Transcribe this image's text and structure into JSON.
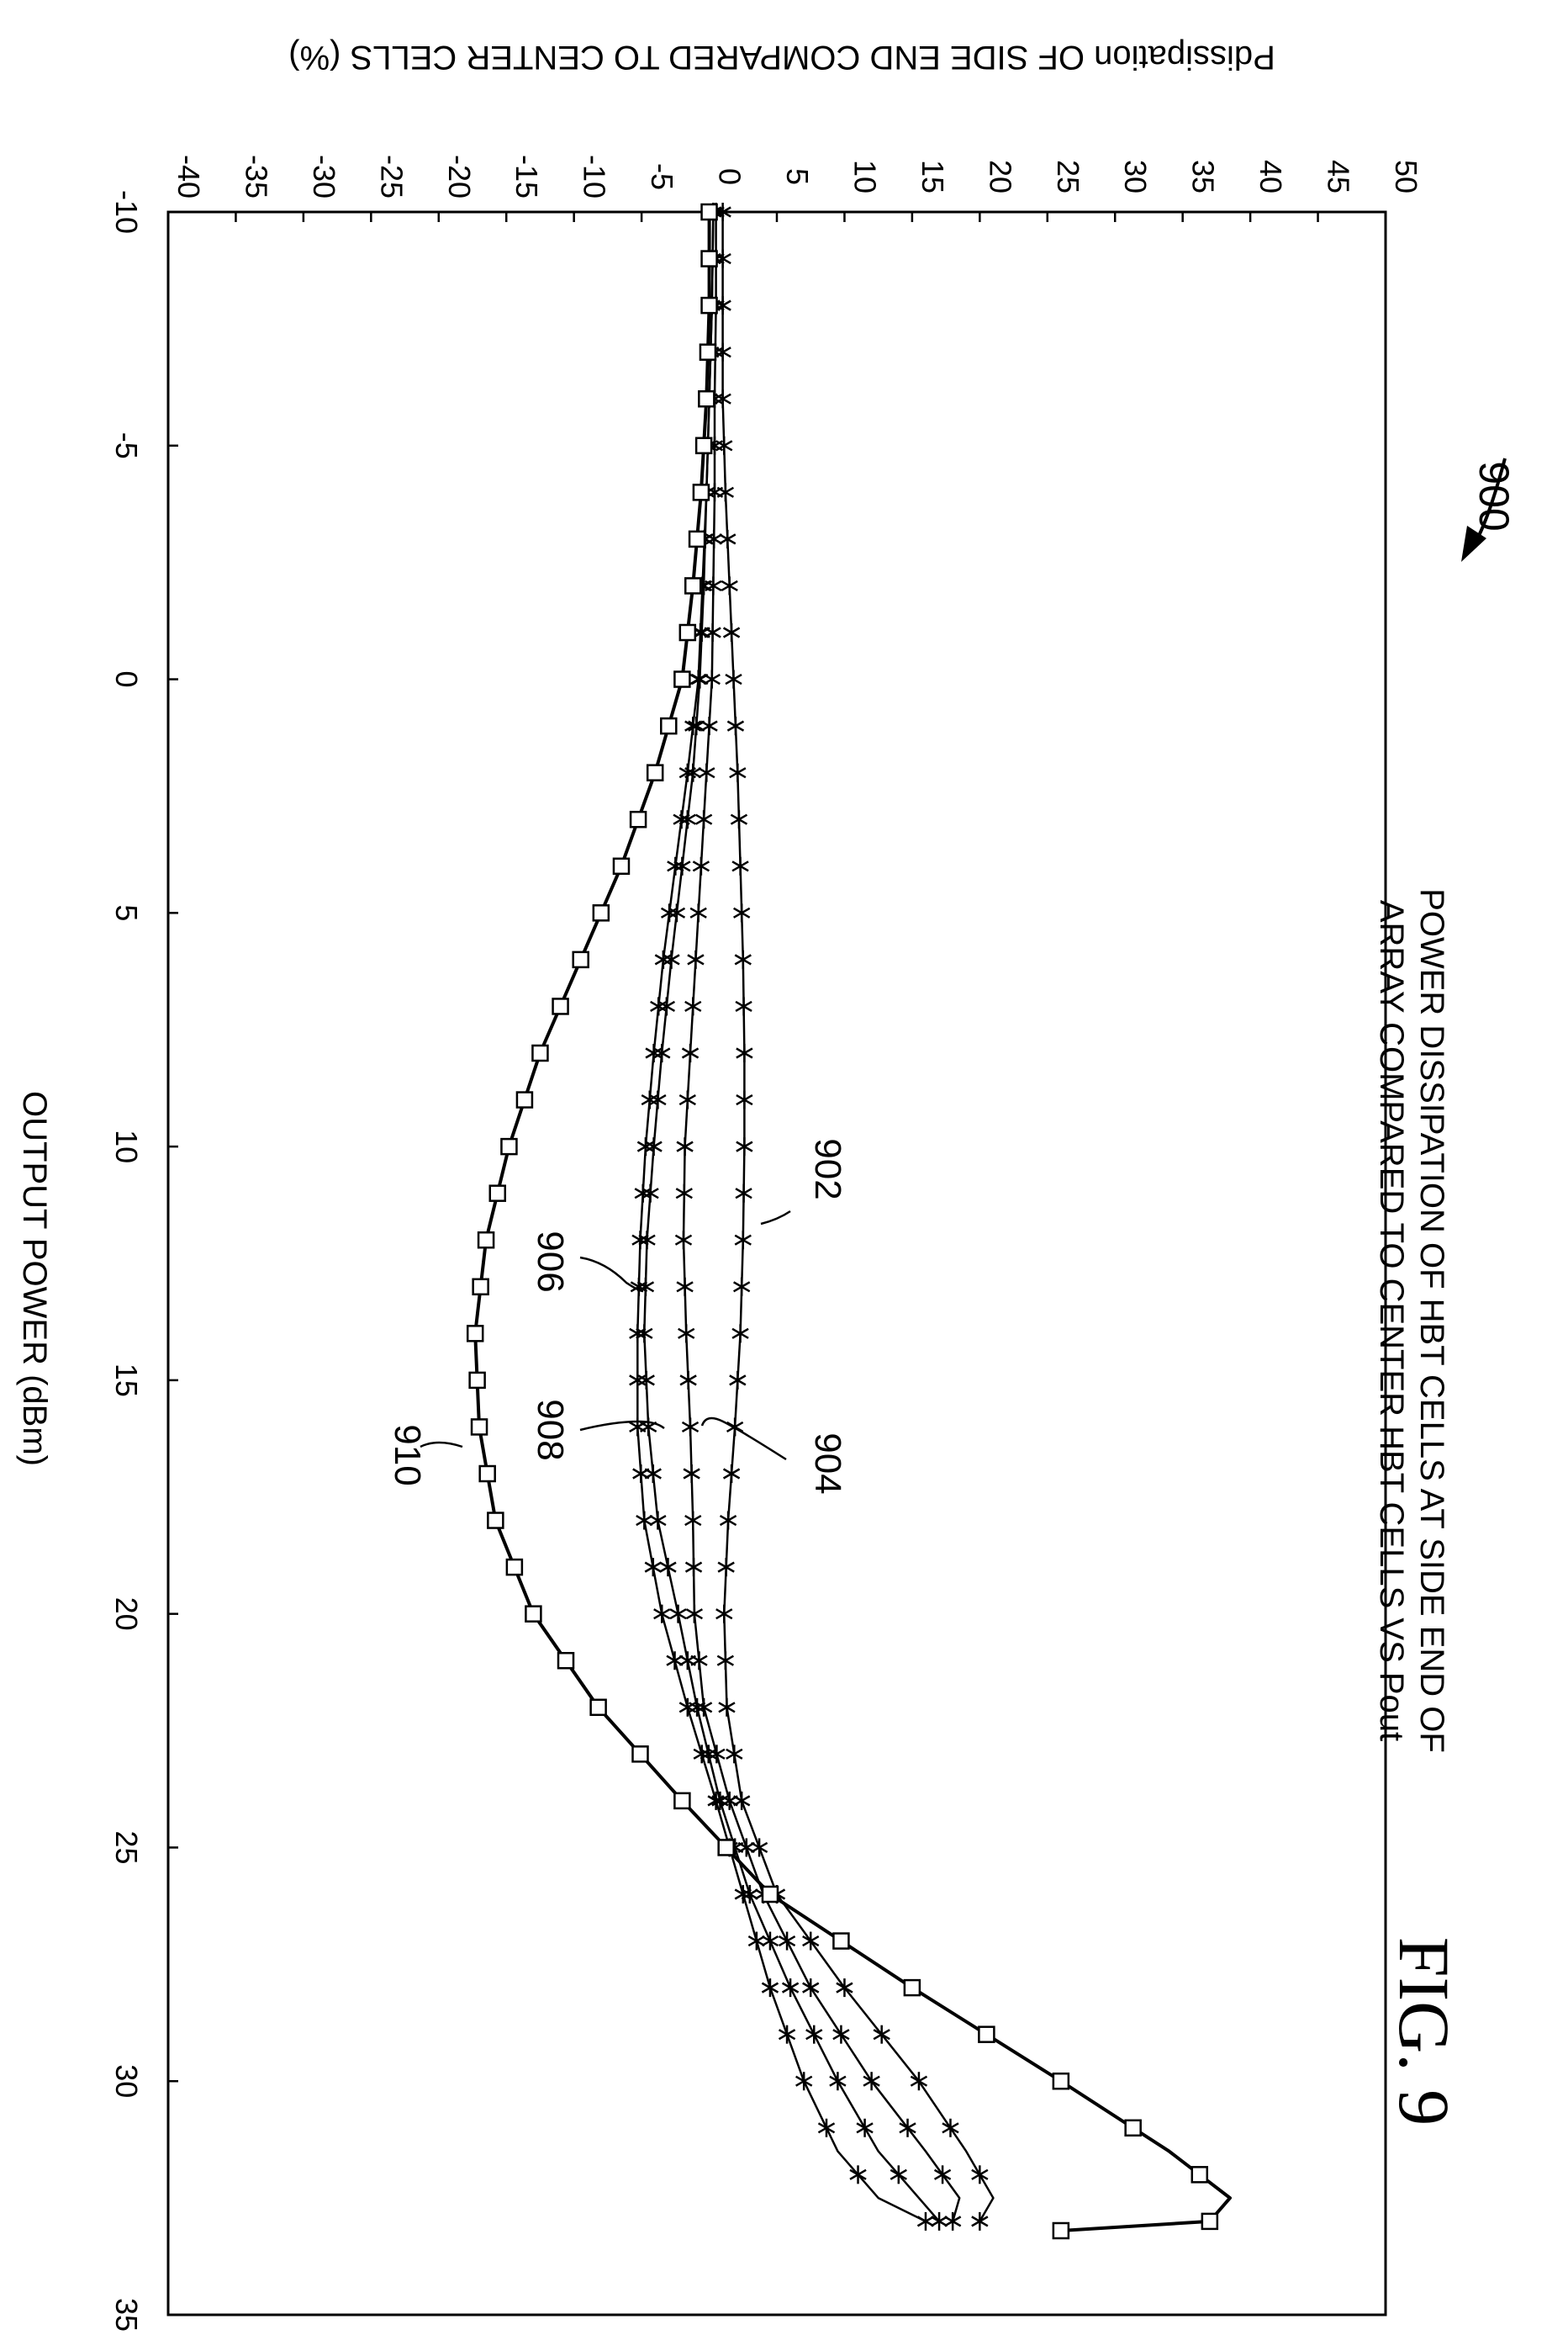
{
  "figure": {
    "label": "FIG. 9",
    "ref_number": "900",
    "title_line1": "POWER DISSIPATION OF HBT CELLS AT SIDE END OF",
    "title_line2": "ARRAY COMPARED TO CENTER HBT CELLS VS Pout"
  },
  "chart_data": {
    "type": "line",
    "orientation": "rotated-90-clockwise",
    "xlabel": "OUTPUT POWER (dBm)",
    "ylabel": "Pdissipation OF SIDE END COMPARED TO CENTER CELLS (%)",
    "xlim": [
      -10,
      35
    ],
    "ylim": [
      -40,
      50
    ],
    "x_ticks": [
      -10,
      -5,
      0,
      5,
      10,
      15,
      20,
      25,
      30,
      35
    ],
    "y_ticks": [
      -40,
      -35,
      -30,
      -25,
      -20,
      -15,
      -10,
      -5,
      0,
      5,
      10,
      15,
      20,
      25,
      30,
      35,
      40,
      45,
      50
    ],
    "grid": false,
    "legend": "none",
    "series": [
      {
        "name": "902",
        "marker": "asterisk",
        "x": [
          -10,
          -8,
          -6,
          -4,
          -2,
          0,
          2,
          4,
          6,
          8,
          10,
          12,
          14,
          16,
          18,
          20,
          22,
          24,
          26,
          28,
          30,
          31.5,
          32.5,
          33
        ],
        "y": [
          1,
          1,
          1,
          1.2,
          1.5,
          1.8,
          2.1,
          2.3,
          2.5,
          2.6,
          2.6,
          2.5,
          2.3,
          1.9,
          1.4,
          1.1,
          1.3,
          2.4,
          5,
          10,
          15.5,
          19,
          21,
          20
        ]
      },
      {
        "name": "904",
        "marker": "asterisk",
        "x": [
          -10,
          -8,
          -6,
          -4,
          -2,
          0,
          2,
          4,
          6,
          8,
          10,
          12,
          14,
          16,
          18,
          20,
          22,
          24,
          26,
          28,
          30,
          31.5,
          32.5,
          33
        ],
        "y": [
          0.5,
          0.5,
          0.4,
          0.4,
          0.3,
          0.2,
          -0.2,
          -0.6,
          -1,
          -1.4,
          -1.8,
          -1.9,
          -1.7,
          -1.4,
          -1.2,
          -1.1,
          -0.4,
          1.5,
          4,
          7.5,
          12,
          16,
          18.5,
          18
        ]
      },
      {
        "name": "906",
        "marker": "asterisk",
        "x": [
          -10,
          -8,
          -6,
          -4,
          -2,
          0,
          2,
          4,
          6,
          8,
          10,
          12,
          14,
          16,
          18,
          20,
          22,
          24,
          26,
          28,
          30,
          31.5,
          32.5,
          33
        ],
        "y": [
          0.3,
          0.2,
          0,
          -0.2,
          -0.4,
          -0.7,
          -1.2,
          -2,
          -2.8,
          -3.5,
          -4.1,
          -4.6,
          -4.8,
          -4.5,
          -3.8,
          -2.3,
          -0.9,
          0.8,
          3,
          6,
          9.5,
          12.5,
          15.5,
          17
        ]
      },
      {
        "name": "908",
        "marker": "asterisk",
        "x": [
          -10,
          -8,
          -6,
          -4,
          -2,
          0,
          2,
          4,
          6,
          8,
          10,
          12,
          14,
          16,
          18,
          20,
          22,
          24,
          26,
          28,
          30,
          31.5,
          32.5,
          33
        ],
        "y": [
          0.3,
          0.2,
          0,
          -0.2,
          -0.5,
          -0.8,
          -1.6,
          -2.5,
          -3.4,
          -4.1,
          -4.7,
          -5.1,
          -5.3,
          -5.3,
          -4.8,
          -3.5,
          -1.6,
          0.5,
          2.5,
          4.5,
          7,
          9.5,
          12.5,
          16
        ]
      },
      {
        "name": "910",
        "marker": "square",
        "x": [
          -10,
          -8,
          -6,
          -4,
          -2,
          0,
          2,
          4,
          6,
          8,
          10,
          12,
          14,
          16,
          18,
          20,
          22,
          24,
          26,
          28,
          30,
          31.5,
          32.5,
          33,
          33.2
        ],
        "y": [
          0,
          0,
          -0.2,
          -0.6,
          -1.2,
          -2,
          -4,
          -6.5,
          -9.5,
          -12.5,
          -14.8,
          -16.5,
          -17.3,
          -17,
          -15.8,
          -13,
          -8.2,
          -2,
          4.5,
          15,
          26,
          34,
          38.5,
          37,
          26
        ]
      }
    ],
    "annotations": [
      "902",
      "904",
      "906",
      "908",
      "910"
    ]
  }
}
